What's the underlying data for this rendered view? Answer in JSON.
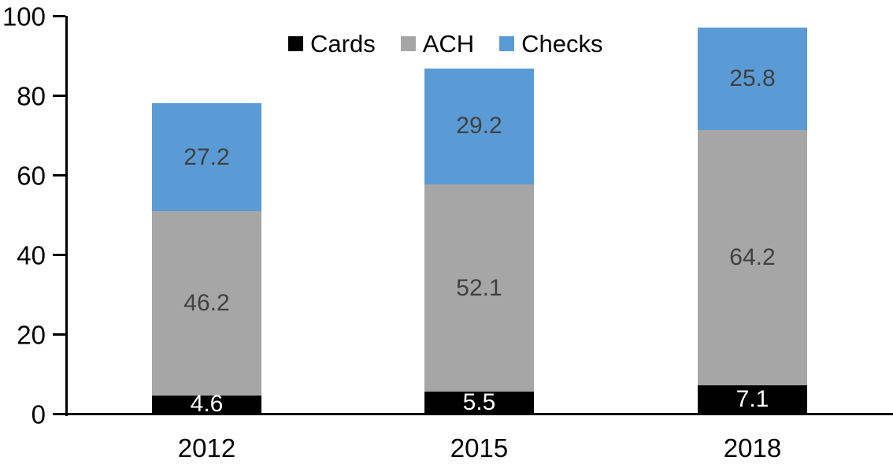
{
  "chart_data": {
    "type": "bar",
    "stacked": true,
    "title": "",
    "xlabel": "",
    "ylabel": "",
    "categories": [
      "2012",
      "2015",
      "2018"
    ],
    "series": [
      {
        "name": "Cards",
        "color": "#000000",
        "label_color": "#ffffff",
        "values": [
          4.6,
          5.5,
          7.1
        ]
      },
      {
        "name": "ACH",
        "color": "#a6a6a6",
        "label_color": "#404040",
        "values": [
          46.2,
          52.1,
          64.2
        ]
      },
      {
        "name": "Checks",
        "color": "#5b9bd5",
        "label_color": "#404040",
        "values": [
          27.2,
          29.2,
          25.8
        ]
      }
    ],
    "value_labels_shown": true,
    "ylim": [
      0,
      100
    ],
    "yticks": [
      0,
      20,
      40,
      60,
      80,
      100
    ],
    "grid": false,
    "legend_position": "top",
    "axis_color": "#000000"
  }
}
